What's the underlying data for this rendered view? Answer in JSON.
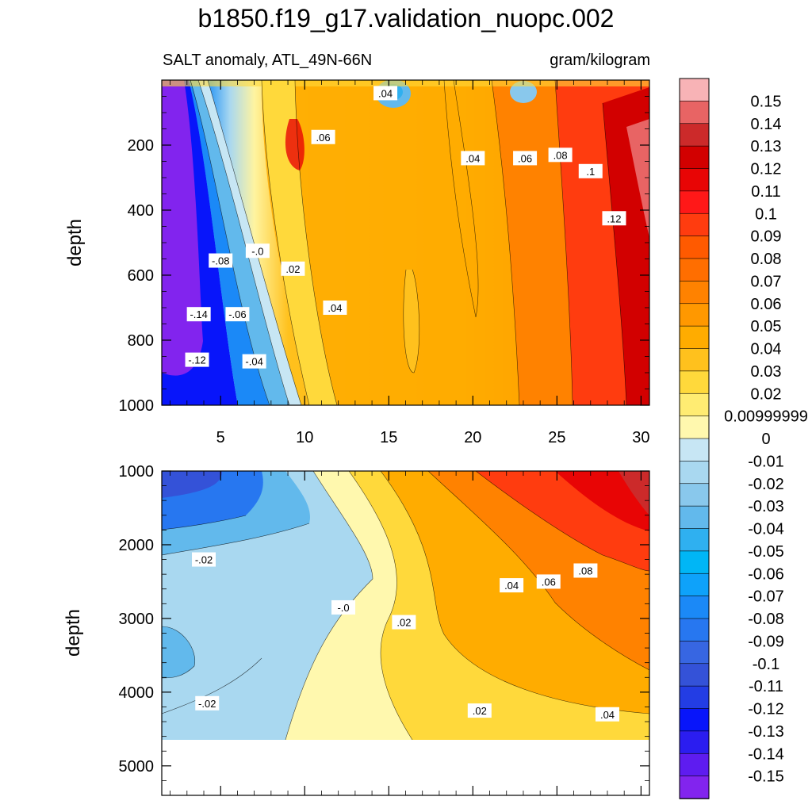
{
  "chart_data": {
    "type": "heatmap",
    "title": "b1850.f19_g17.validation_nuopc.002",
    "subtitle_left": "SALT anomaly, ATL_49N-66N",
    "subtitle_right": "gram/kilogram",
    "ylabel": "depth",
    "xlim": [
      1.5,
      30.5
    ],
    "x_ticks": [
      5,
      10,
      15,
      20,
      25,
      30
    ],
    "upper_panel": {
      "ylim": [
        1000,
        0
      ],
      "y_ticks": [
        200,
        400,
        600,
        800,
        1000
      ],
      "x_ticks_labels": [
        "5",
        "10",
        "15",
        "20",
        "25",
        "30"
      ],
      "contour_labels": [
        {
          "text": ".04",
          "x": 14.8,
          "depth": 40
        },
        {
          "text": ".06",
          "x": 11.1,
          "depth": 175
        },
        {
          "text": ".04",
          "x": 20.0,
          "depth": 240
        },
        {
          "text": ".06",
          "x": 23.1,
          "depth": 240
        },
        {
          "text": ".08",
          "x": 25.2,
          "depth": 230
        },
        {
          "text": ".1",
          "x": 27.0,
          "depth": 280
        },
        {
          "text": ".12",
          "x": 28.4,
          "depth": 425
        },
        {
          "text": "-.08",
          "x": 5.0,
          "depth": 555
        },
        {
          "text": "-.0",
          "x": 7.2,
          "depth": 525
        },
        {
          "text": ".02",
          "x": 9.3,
          "depth": 580
        },
        {
          "text": "-.14",
          "x": 3.7,
          "depth": 720
        },
        {
          "text": "-.06",
          "x": 6.0,
          "depth": 720
        },
        {
          "text": ".04",
          "x": 11.8,
          "depth": 700
        },
        {
          "text": "-.12",
          "x": 3.6,
          "depth": 860
        },
        {
          "text": "-.04",
          "x": 7.0,
          "depth": 865
        }
      ]
    },
    "lower_panel": {
      "ylim": [
        5400,
        1000
      ],
      "y_ticks": [
        1000,
        2000,
        3000,
        4000,
        5000
      ],
      "contour_labels": [
        {
          "text": "-.02",
          "x": 4.0,
          "depth": 2200
        },
        {
          "text": "-.0",
          "x": 12.3,
          "depth": 2850
        },
        {
          "text": ".02",
          "x": 15.9,
          "depth": 3050
        },
        {
          "text": ".04",
          "x": 22.3,
          "depth": 2550
        },
        {
          "text": ".06",
          "x": 24.5,
          "depth": 2500
        },
        {
          "text": ".08",
          "x": 26.7,
          "depth": 2350
        },
        {
          "text": "-.02",
          "x": 4.2,
          "depth": 4150
        },
        {
          "text": ".02",
          "x": 20.4,
          "depth": 4250
        },
        {
          "text": ".04",
          "x": 28.0,
          "depth": 4300
        }
      ],
      "ocean_floor_depth": 4620
    },
    "colorbar": {
      "labels": [
        "0.15",
        "0.14",
        "0.13",
        "0.12",
        "0.11",
        "0.1",
        "0.09",
        "0.08",
        "0.07",
        "0.06",
        "0.05",
        "0.04",
        "0.03",
        "0.02",
        "0.00999999",
        "0",
        "-0.01",
        "-0.02",
        "-0.03",
        "-0.04",
        "-0.05",
        "-0.06",
        "-0.07",
        "-0.08",
        "-0.09",
        "-0.1",
        "-0.11",
        "-0.12",
        "-0.13",
        "-0.14",
        "-0.15"
      ],
      "colors": [
        "#f8b3b6",
        "#e86464",
        "#cc2a2a",
        "#d20000",
        "#e80505",
        "#ff1818",
        "#ff3c0f",
        "#ff5a00",
        "#ff6e00",
        "#ff8200",
        "#ff9800",
        "#ffac00",
        "#ffc11d",
        "#ffd93b",
        "#ffec72",
        "#fff8ae",
        "#c7e6f4",
        "#a9d8f0",
        "#89c8ec",
        "#62b9ec",
        "#2fb0f0",
        "#00b6f6",
        "#0ea2fa",
        "#1b89f7",
        "#2777f0",
        "#3766e2",
        "#3452d8",
        "#233de4",
        "#0815fa",
        "#2b1df0",
        "#5e1cf0",
        "#8224ee"
      ]
    }
  }
}
